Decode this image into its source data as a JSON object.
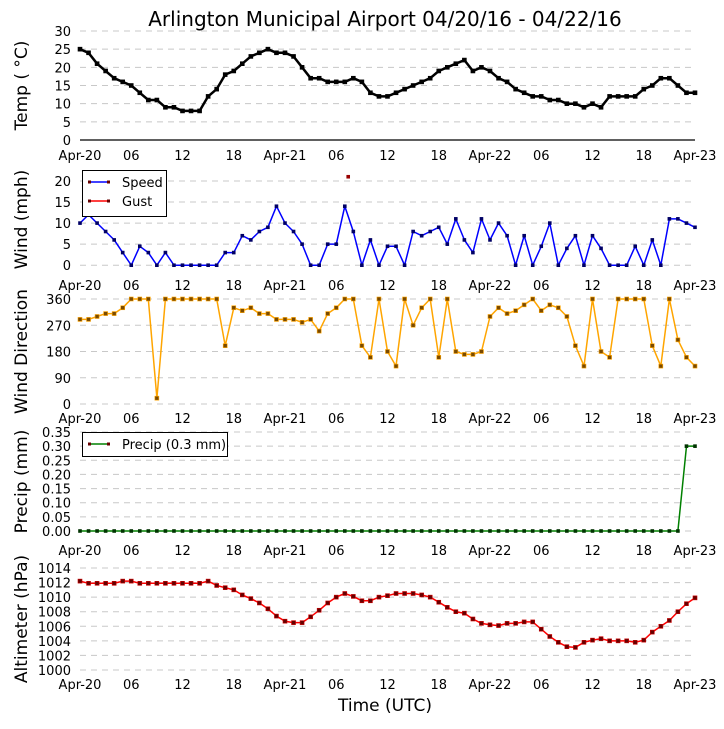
{
  "title": "Arlington Municipal Airport 04/20/16 - 04/22/16",
  "xlabel": "Time (UTC)",
  "x_tick_labels": [
    "Apr-20",
    "06",
    "12",
    "18",
    "Apr-21",
    "06",
    "12",
    "18",
    "Apr-22",
    "06",
    "12",
    "18",
    "Apr-23"
  ],
  "x_tick_hours": [
    0,
    6,
    12,
    18,
    24,
    30,
    36,
    42,
    48,
    54,
    60,
    66,
    72
  ],
  "chart_data": [
    {
      "type": "line",
      "ylabel": "Temp ( °C)",
      "ylim": [
        0,
        30
      ],
      "yticks": [
        "0",
        "5",
        "10",
        "15",
        "20",
        "25",
        "30"
      ],
      "ytick_values": [
        0,
        5,
        10,
        15,
        20,
        25,
        30
      ],
      "x_units": "hours since Apr-20 00 UTC",
      "series": [
        {
          "name": "Temp",
          "color": "#000000",
          "values": [
            25,
            24,
            21,
            19,
            17,
            16,
            15,
            13,
            11,
            11,
            9,
            9,
            8,
            8,
            8,
            12,
            14,
            18,
            19,
            21,
            23,
            24,
            25,
            24,
            24,
            23,
            20,
            17,
            17,
            16,
            16,
            16,
            17,
            16,
            13,
            12,
            12,
            13,
            14,
            15,
            16,
            17,
            19,
            20,
            21,
            22,
            19,
            20,
            19,
            17,
            16,
            14,
            13,
            12,
            12,
            11,
            11,
            10,
            10,
            9,
            10,
            9,
            12,
            12,
            12,
            12,
            14,
            15,
            17,
            17,
            15,
            13,
            13
          ]
        }
      ]
    },
    {
      "type": "line",
      "ylabel": "Wind (mph)",
      "ylim": [
        -1,
        23
      ],
      "yticks": [
        "0",
        "5",
        "10",
        "15",
        "20"
      ],
      "ytick_values": [
        0,
        5,
        10,
        15,
        20
      ],
      "legend": "top-left",
      "series": [
        {
          "name": "Speed",
          "color": "#0000ff",
          "values": [
            10,
            12,
            10,
            8,
            6,
            3,
            0,
            4.5,
            3,
            0,
            3,
            0,
            0,
            0,
            0,
            0,
            0,
            3,
            3,
            7,
            6,
            8,
            9,
            14,
            10,
            8,
            5,
            0,
            0,
            5,
            5,
            14,
            8,
            0,
            6,
            0,
            4.5,
            4.5,
            0,
            8,
            7,
            8,
            9,
            5,
            11,
            6,
            3,
            11,
            6,
            10,
            7,
            0,
            7,
            0,
            4.5,
            10,
            0,
            4,
            7,
            0,
            7,
            4,
            0,
            0,
            0,
            4.5,
            0,
            6,
            0,
            11,
            11,
            10,
            9
          ]
        },
        {
          "name": "Gust",
          "color": "#ff0000",
          "points": [
            [
              31.4,
              21
            ]
          ]
        }
      ]
    },
    {
      "type": "line",
      "ylabel": "Wind Direction",
      "ylim": [
        0,
        360
      ],
      "yticks": [
        "0",
        "90",
        "180",
        "270",
        "360"
      ],
      "ytick_values": [
        0,
        90,
        180,
        270,
        360
      ],
      "series": [
        {
          "name": "Direction",
          "color": "#ffa500",
          "values": [
            290,
            290,
            300,
            310,
            310,
            330,
            360,
            360,
            360,
            20,
            360,
            360,
            360,
            360,
            360,
            360,
            360,
            200,
            330,
            320,
            330,
            310,
            310,
            290,
            290,
            290,
            280,
            290,
            250,
            310,
            330,
            360,
            360,
            200,
            160,
            360,
            180,
            130,
            360,
            270,
            330,
            360,
            160,
            360,
            180,
            170,
            170,
            180,
            300,
            330,
            310,
            320,
            340,
            360,
            320,
            340,
            330,
            300,
            200,
            130,
            360,
            180,
            160,
            360,
            360,
            360,
            360,
            200,
            130,
            360,
            220,
            160,
            130
          ]
        }
      ]
    },
    {
      "type": "line",
      "ylabel": "Precip (mm)",
      "ylim": [
        0,
        0.35
      ],
      "yticks": [
        "0.00",
        "0.05",
        "0.10",
        "0.15",
        "0.20",
        "0.25",
        "0.30",
        "0.35"
      ],
      "ytick_values": [
        0,
        0.05,
        0.1,
        0.15,
        0.2,
        0.25,
        0.3,
        0.35
      ],
      "legend": "top-left",
      "series": [
        {
          "name": "Precip (0.3 mm)",
          "color": "#008000",
          "values": [
            0,
            0,
            0,
            0,
            0,
            0,
            0,
            0,
            0,
            0,
            0,
            0,
            0,
            0,
            0,
            0,
            0,
            0,
            0,
            0,
            0,
            0,
            0,
            0,
            0,
            0,
            0,
            0,
            0,
            0,
            0,
            0,
            0,
            0,
            0,
            0,
            0,
            0,
            0,
            0,
            0,
            0,
            0,
            0,
            0,
            0,
            0,
            0,
            0,
            0,
            0,
            0,
            0,
            0,
            0,
            0,
            0,
            0,
            0,
            0,
            0,
            0,
            0,
            0,
            0,
            0,
            0,
            0,
            0,
            0,
            0,
            0.3,
            0.3
          ]
        }
      ]
    },
    {
      "type": "line",
      "ylabel": "Altimeter (hPa)",
      "ylim": [
        1000,
        1014
      ],
      "yticks": [
        "1000",
        "1002",
        "1004",
        "1006",
        "1008",
        "1010",
        "1012",
        "1014"
      ],
      "ytick_values": [
        1000,
        1002,
        1004,
        1006,
        1008,
        1010,
        1012,
        1014
      ],
      "series": [
        {
          "name": "Altimeter",
          "color": "#ff0000",
          "values": [
            1012.2,
            1011.9,
            1011.9,
            1011.9,
            1011.9,
            1012.2,
            1012.2,
            1011.9,
            1011.9,
            1011.9,
            1011.9,
            1011.9,
            1011.9,
            1011.9,
            1011.9,
            1012.2,
            1011.6,
            1011.3,
            1011.0,
            1010.3,
            1009.8,
            1009.2,
            1008.4,
            1007.4,
            1006.7,
            1006.5,
            1006.5,
            1007.3,
            1008.2,
            1009.2,
            1010.0,
            1010.5,
            1010.1,
            1009.5,
            1009.5,
            1010.0,
            1010.2,
            1010.5,
            1010.5,
            1010.5,
            1010.3,
            1010.0,
            1009.3,
            1008.6,
            1008.0,
            1007.8,
            1007.0,
            1006.4,
            1006.2,
            1006.1,
            1006.4,
            1006.4,
            1006.6,
            1006.6,
            1005.6,
            1004.6,
            1003.8,
            1003.2,
            1003.1,
            1003.8,
            1004.1,
            1004.3,
            1004.0,
            1004.0,
            1004.0,
            1003.8,
            1004.1,
            1005.2,
            1006.0,
            1006.8,
            1008.0,
            1009.1,
            1009.9
          ]
        }
      ]
    }
  ]
}
